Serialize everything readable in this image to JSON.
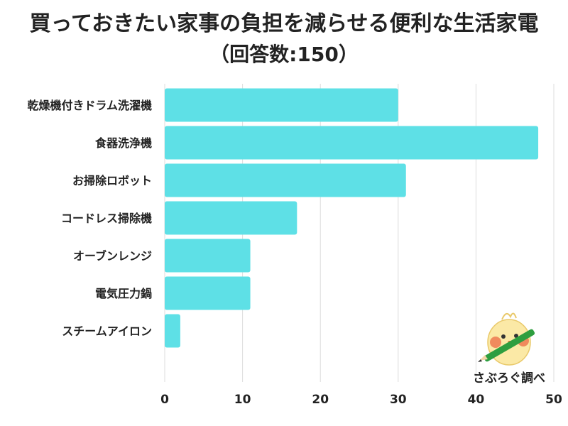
{
  "title": "買っておきたい家事の負担を減らせる便利な生活家電",
  "subtitle": "（回答数:150）",
  "credit": "さぶろぐ調べ",
  "mascot_icon": "bird-holding-pencil",
  "colors": {
    "bar": "#5ee0e6",
    "grid": "#dcdcdc",
    "text": "#222222"
  },
  "chart_data": {
    "type": "bar",
    "orientation": "horizontal",
    "categories": [
      "乾燥機付きドラム洗濯機",
      "食器洗浄機",
      "お掃除ロボット",
      "コードレス掃除機",
      "オーブンレンジ",
      "電気圧力鍋",
      "スチームアイロン"
    ],
    "values": [
      30,
      48,
      31,
      17,
      11,
      11,
      2
    ],
    "xlim": [
      0,
      50
    ],
    "xticks": [
      0,
      10,
      20,
      30,
      40,
      50
    ],
    "grid": "vertical",
    "legend": "none"
  }
}
